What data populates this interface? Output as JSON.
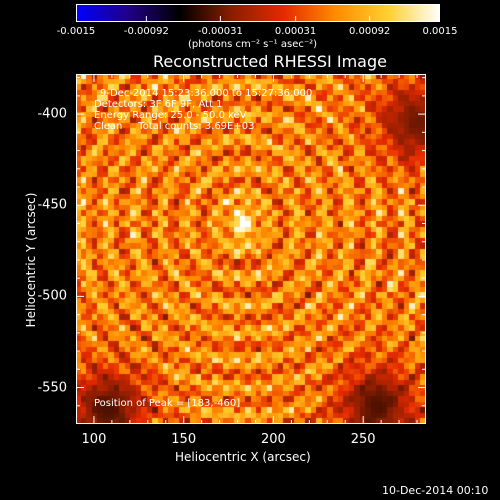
{
  "colorbar": {
    "ticks": [
      "-0.0015",
      "-0.00092",
      "-0.00031",
      "0.00031",
      "0.00092",
      "0.0015"
    ],
    "tick_values": [
      -0.0015,
      -0.00092,
      -0.00031,
      0.00031,
      0.00092,
      0.0015
    ],
    "unit_label": "(photons cm⁻² s⁻¹ asec⁻²)",
    "colormap": [
      "#0000ff",
      "#200088",
      "#000000",
      "#8a1e00",
      "#e62a00",
      "#ff8c00",
      "#ffd030",
      "#ffffff"
    ]
  },
  "info": {
    "line1": "9-Dec-2014 15:23:36.000 to 15:27:36.000",
    "line2": "Detectors: 3F 6F 9F, Att 1",
    "line3": "Energy Range: 25.0 - 50.0 keV",
    "line4": "Clean     Total counts: 3.69E+03",
    "peak": "Position of Peak = [183,-460]"
  },
  "footer": "10-Dec-2014 00:10",
  "chart_data": {
    "type": "heatmap",
    "title": "Reconstructed RHESSI Image",
    "xlabel": "Heliocentric X (arcsec)",
    "ylabel": "Heliocentric Y (arcsec)",
    "xlim": [
      90,
      285
    ],
    "ylim": [
      -570,
      -378
    ],
    "xticks": [
      "100",
      "150",
      "200",
      "250"
    ],
    "xtick_values": [
      100,
      150,
      200,
      250
    ],
    "yticks": [
      "-400",
      "-450",
      "-500",
      "-550"
    ],
    "ytick_values": [
      -400,
      -450,
      -500,
      -550
    ],
    "vmin": -0.0015,
    "vmax": 0.0015,
    "peak": {
      "x": 183,
      "y": -460,
      "value": 0.0015
    },
    "background_level": 0.0006,
    "fringe_amplitude": 0.00055,
    "negative_regions": [
      {
        "x": 108,
        "y": -562,
        "level": -0.0004
      },
      {
        "x": 258,
        "y": -560,
        "level": -0.0004
      },
      {
        "x": 280,
        "y": -405,
        "level": -0.0003
      }
    ]
  }
}
